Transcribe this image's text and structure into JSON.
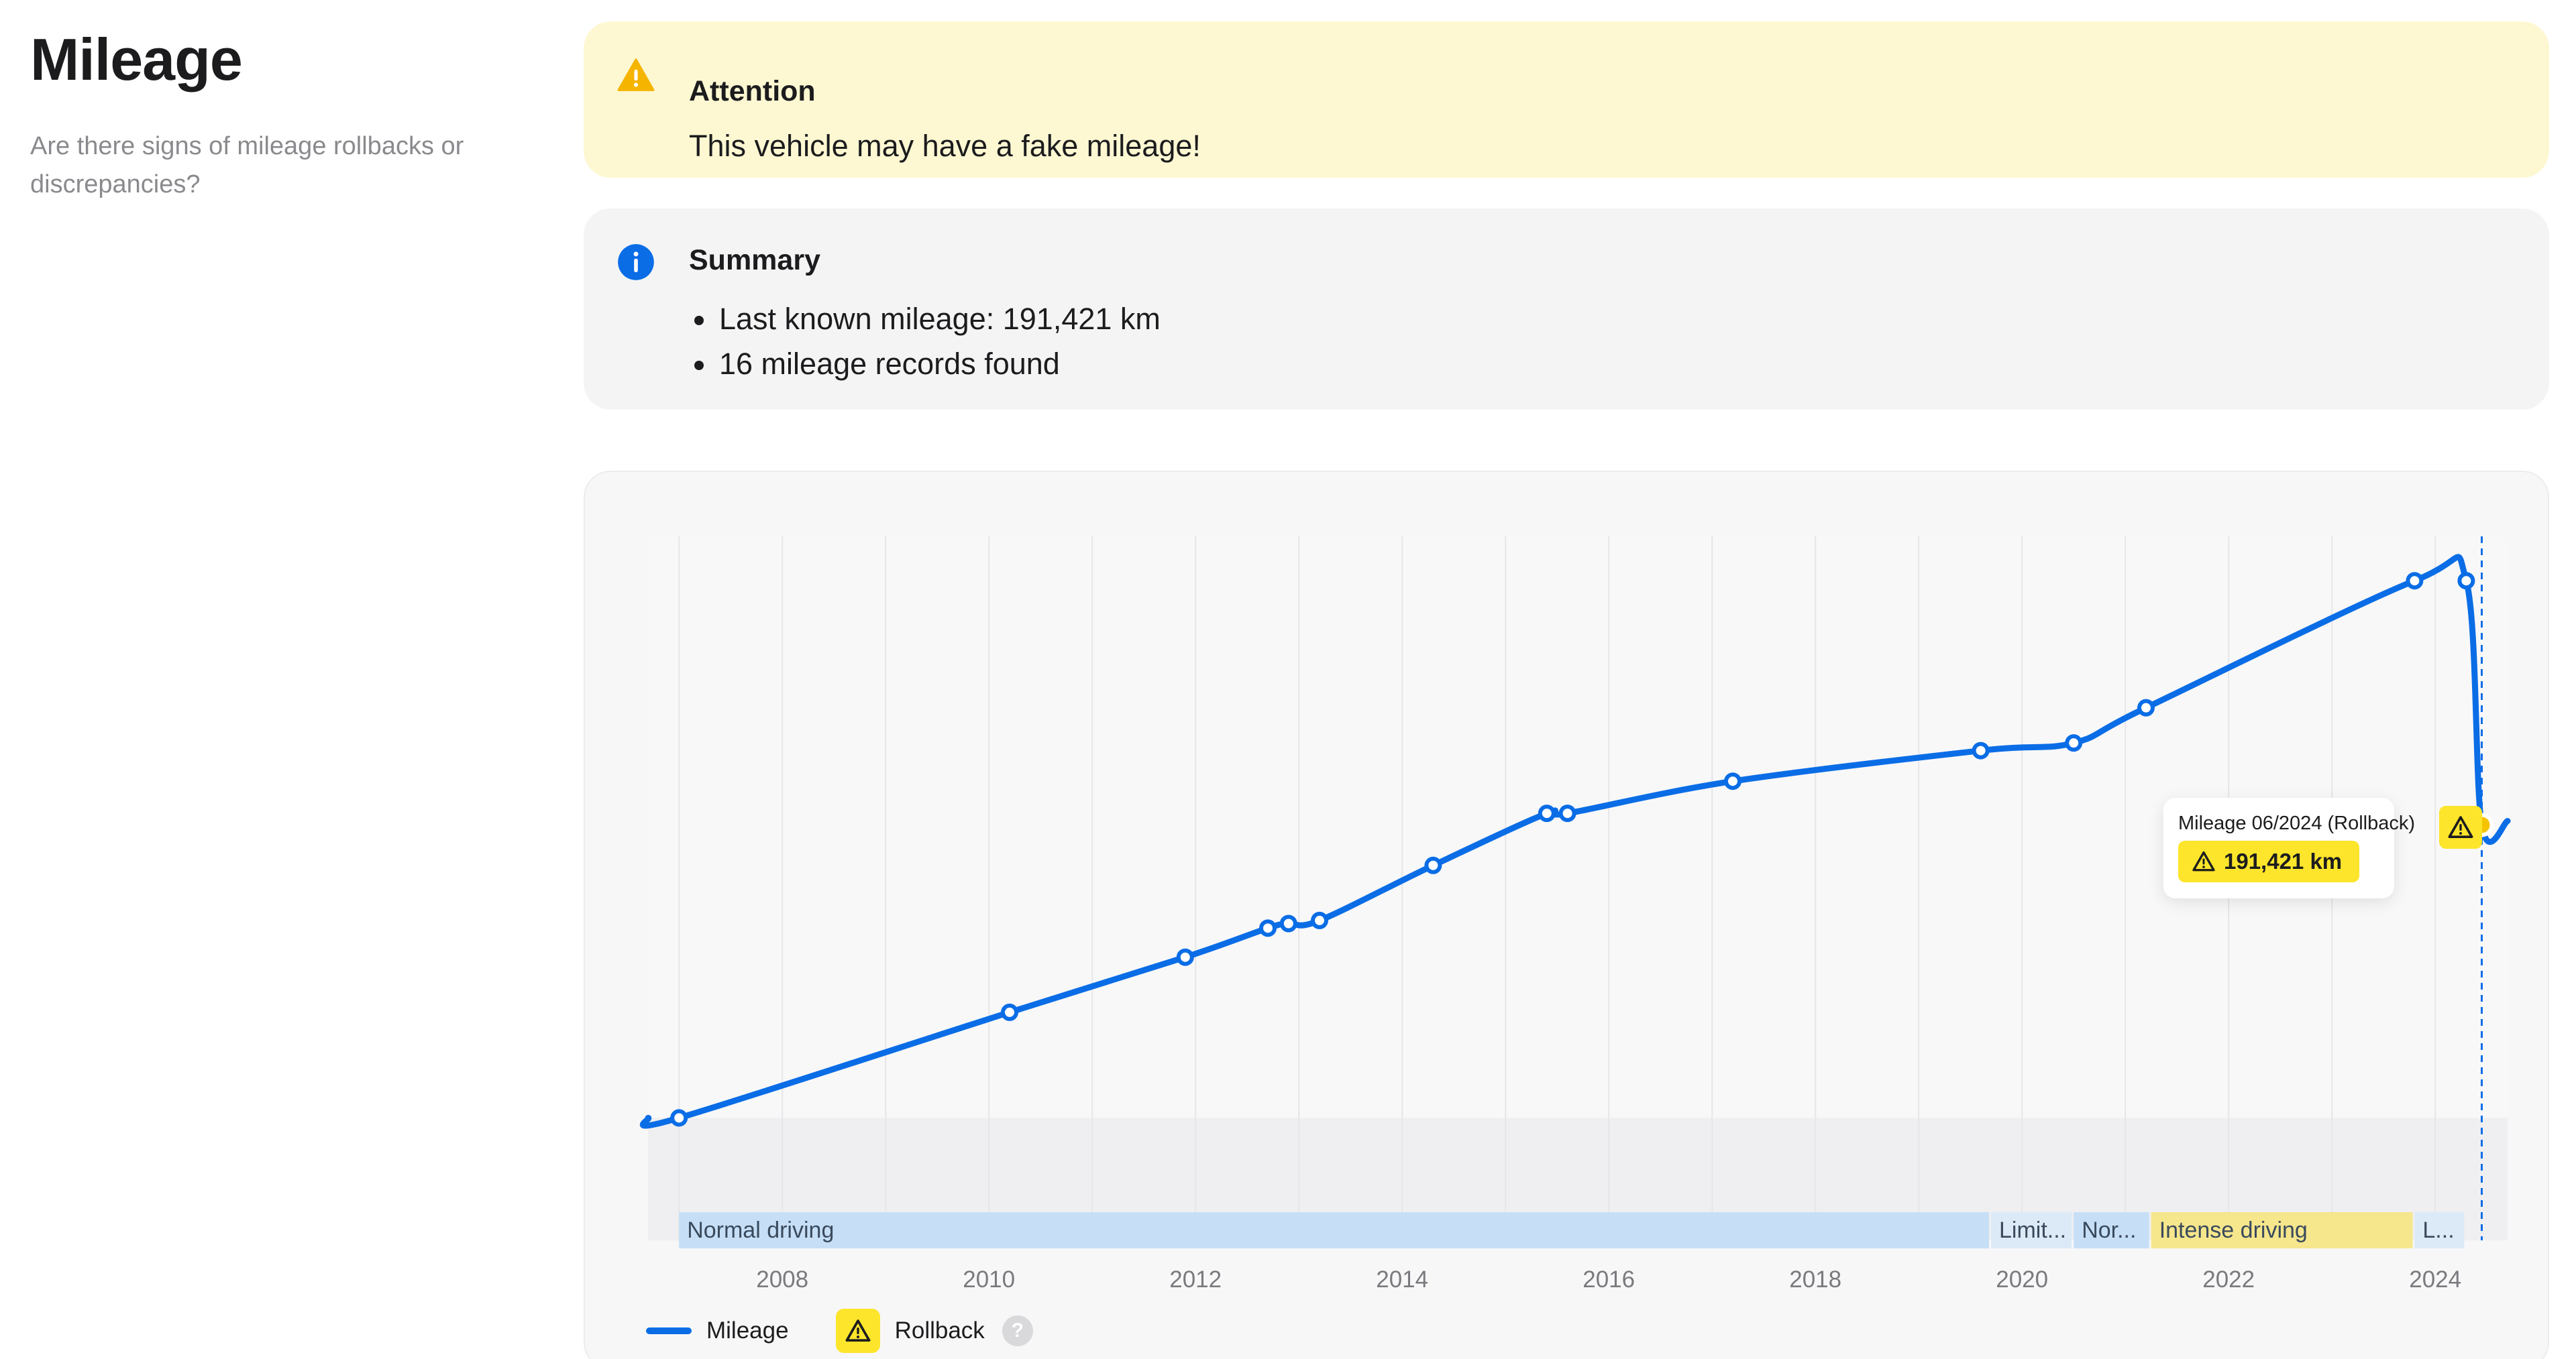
{
  "header": {
    "title": "Mileage",
    "subtitle": "Are there signs of mileage rollbacks or discrepancies?"
  },
  "attention": {
    "icon": "warning-triangle-icon",
    "title": "Attention",
    "text": "This vehicle may have a fake mileage!",
    "color": "#f5b400"
  },
  "summary": {
    "icon": "info-circle-icon",
    "title": "Summary",
    "items": [
      "Last known mileage: 191,421 km",
      "16 mileage records found"
    ],
    "color": "#0a6de6"
  },
  "tooltip": {
    "title": "Mileage 06/2024 (Rollback)",
    "value": "191,421 km",
    "icon": "warning-triangle-icon"
  },
  "legend": {
    "mileage_label": "Mileage",
    "rollback_label": "Rollback",
    "help_label": "?"
  },
  "colors": {
    "line": "#0a6de6",
    "rollback": "#fde52b",
    "rollback_point": "#f5c400",
    "band_normal": "#c6dff6",
    "band_intense": "#f6e68c"
  },
  "chart_data": {
    "type": "line",
    "x_axis": {
      "tick_labels": [
        "2008",
        "2010",
        "2012",
        "2014",
        "2016",
        "2018",
        "2020",
        "2022",
        "2024"
      ],
      "range": [
        2006.7,
        2024.7
      ],
      "grid": true
    },
    "series": [
      {
        "name": "Mileage",
        "unit": "km",
        "points": [
          {
            "x": 2007.0,
            "y": 0
          },
          {
            "x": 2010.2,
            "y": 69000
          },
          {
            "x": 2011.9,
            "y": 105000
          },
          {
            "x": 2012.7,
            "y": 124000
          },
          {
            "x": 2012.9,
            "y": 127000
          },
          {
            "x": 2013.2,
            "y": 129000
          },
          {
            "x": 2014.3,
            "y": 165000
          },
          {
            "x": 2015.4,
            "y": 199000
          },
          {
            "x": 2015.6,
            "y": 199000
          },
          {
            "x": 2017.2,
            "y": 220000
          },
          {
            "x": 2019.6,
            "y": 240000
          },
          {
            "x": 2020.5,
            "y": 245000
          },
          {
            "x": 2021.2,
            "y": 268000
          },
          {
            "x": 2023.8,
            "y": 351000
          },
          {
            "x": 2024.3,
            "y": 351000
          },
          {
            "x": 2024.45,
            "y": 191421,
            "rollback": true,
            "label": "Mileage 06/2024 (Rollback)"
          }
        ],
        "trailing_to": {
          "x": 2024.7,
          "y": 194000
        }
      }
    ],
    "y_range": [
      -80000,
      380000
    ],
    "rollback_marker_x": 2024.45,
    "driving_bands": [
      {
        "label": "Normal driving",
        "start": 2007.0,
        "end": 2019.7,
        "kind": "normal"
      },
      {
        "label": "Limit...",
        "start": 2019.7,
        "end": 2020.5,
        "kind": "limited"
      },
      {
        "label": "Nor...",
        "start": 2020.5,
        "end": 2021.25,
        "kind": "normal"
      },
      {
        "label": "Intense driving",
        "start": 2021.25,
        "end": 2023.8,
        "kind": "intense"
      },
      {
        "label": "L...",
        "start": 2023.8,
        "end": 2024.3,
        "kind": "limited"
      }
    ],
    "legend": [
      "Mileage",
      "Rollback"
    ],
    "legend_position": "bottom-left"
  }
}
